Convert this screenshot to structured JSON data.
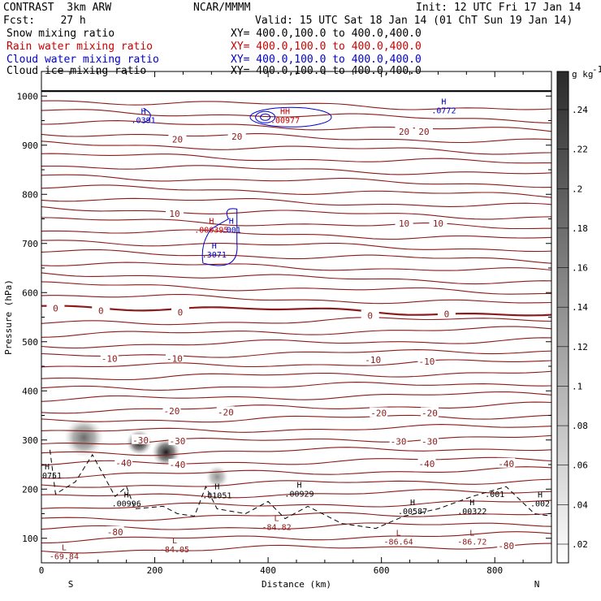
{
  "header": {
    "model": "CONTRAST  3km ARW",
    "org": "NCAR/MMMM",
    "init": "Init: 12 UTC Fri 17 Jan 14",
    "fcst": "Fcst:    27 h",
    "valid": "Valid: 15 UTC Sat 18 Jan 14 (01 ChT Sun 19 Jan 14)",
    "fields": [
      {
        "name": "Snow mixing ratio",
        "xy": "XY= 400.0,100.0 to 400.0,400.0",
        "color": "#000000"
      },
      {
        "name": "Rain water mixing ratio",
        "xy": "XY= 400.0,100.0 to 400.0,400.0",
        "color": "#cc0000"
      },
      {
        "name": "Cloud water mixing ratio",
        "xy": "XY= 400.0,100.0 to 400.0,400.0",
        "color": "#0000cc"
      },
      {
        "name": "Cloud ice mixing ratio",
        "xy": "XY= 400.0,100.0 to 400.0,400.0",
        "color": "#000000"
      }
    ]
  },
  "chart_data": {
    "type": "cross-section",
    "xlabel": "Distance (km)",
    "ylabel": "Pressure (hPa)",
    "xlim": [
      0,
      900
    ],
    "ylim": [
      1050,
      50
    ],
    "x_ticks": [
      0,
      200,
      400,
      600,
      800
    ],
    "y_ticks": [
      100,
      200,
      300,
      400,
      500,
      600,
      700,
      800,
      900,
      1000
    ],
    "end_labels": {
      "left": "S",
      "right": "N"
    },
    "colorbar": {
      "unit": "g kg",
      "unit_exp": "-1",
      "labels": [
        ".24",
        ".22",
        ".2",
        ".18",
        ".16",
        ".14",
        ".12",
        ".1",
        ".08",
        ".06",
        ".04",
        ".02"
      ]
    },
    "temperature_contours": [
      {
        "level": "-80",
        "labels": [
          {
            "x": 130,
            "p": 113
          },
          {
            "x": 820,
            "p": 85
          }
        ]
      },
      {
        "level": "-40",
        "labels": [
          {
            "x": 145,
            "p": 253
          },
          {
            "x": 240,
            "p": 250
          },
          {
            "x": 680,
            "p": 252
          },
          {
            "x": 820,
            "p": 252
          }
        ]
      },
      {
        "level": "-30",
        "labels": [
          {
            "x": 175,
            "p": 300
          },
          {
            "x": 240,
            "p": 298
          },
          {
            "x": 630,
            "p": 297
          },
          {
            "x": 685,
            "p": 297
          }
        ]
      },
      {
        "level": "-20",
        "labels": [
          {
            "x": 230,
            "p": 359
          },
          {
            "x": 325,
            "p": 357
          },
          {
            "x": 595,
            "p": 355
          },
          {
            "x": 685,
            "p": 355
          }
        ]
      },
      {
        "level": "-10",
        "labels": [
          {
            "x": 120,
            "p": 466
          },
          {
            "x": 235,
            "p": 466
          },
          {
            "x": 585,
            "p": 463
          },
          {
            "x": 680,
            "p": 460
          }
        ]
      },
      {
        "level": "0",
        "labels": [
          {
            "x": 25,
            "p": 568
          },
          {
            "x": 105,
            "p": 563
          },
          {
            "x": 245,
            "p": 560
          },
          {
            "x": 580,
            "p": 553
          },
          {
            "x": 715,
            "p": 557
          }
        ]
      },
      {
        "level": "10",
        "labels": [
          {
            "x": 235,
            "p": 761
          },
          {
            "x": 640,
            "p": 741
          },
          {
            "x": 700,
            "p": 741
          }
        ]
      },
      {
        "level": "20",
        "labels": [
          {
            "x": 240,
            "p": 912
          },
          {
            "x": 345,
            "p": 918
          },
          {
            "x": 640,
            "p": 928
          },
          {
            "x": 675,
            "p": 928
          }
        ]
      }
    ],
    "min_labels": [
      {
        "mark": "L",
        "value": "-69.84",
        "x": 40,
        "p": 76
      },
      {
        "mark": "L",
        "value": "-84.05",
        "x": 235,
        "p": 90
      },
      {
        "mark": "L",
        "value": "-84.82",
        "x": 415,
        "p": 135
      },
      {
        "mark": "L",
        "value": "-86.64",
        "x": 630,
        "p": 105
      },
      {
        "mark": "L",
        "value": "-86.72",
        "x": 760,
        "p": 105
      }
    ],
    "max_labels": [
      {
        "mark": "H",
        "value": ".00751",
        "x": 10,
        "p": 240,
        "color": "#000000"
      },
      {
        "mark": "H",
        "value": ".00996",
        "x": 150,
        "p": 183,
        "color": "#000000"
      },
      {
        "mark": "H",
        "value": ".01051",
        "x": 310,
        "p": 200,
        "color": "#000000"
      },
      {
        "mark": "H",
        "value": ".00929",
        "x": 455,
        "p": 203,
        "color": "#000000"
      },
      {
        "mark": "H",
        "value": ".00587",
        "x": 655,
        "p": 167,
        "color": "#000000"
      },
      {
        "mark": "H",
        "value": ".00322",
        "x": 760,
        "p": 167,
        "color": "#000000"
      },
      {
        "mark": "H",
        "value": ".002",
        "x": 880,
        "p": 183,
        "color": "#000000"
      },
      {
        "mark": "",
        "value": ".001",
        "x": 800,
        "p": 202,
        "color": "#000000"
      },
      {
        "mark": "H",
        "value": ".3071",
        "x": 305,
        "p": 690,
        "color": "#0000cc"
      },
      {
        "mark": "H",
        "value": ".000395",
        "x": 300,
        "p": 740,
        "color": "#cc0000"
      },
      {
        "mark": "H",
        "value": ".001",
        "x": 335,
        "p": 740,
        "color": "#0000cc"
      },
      {
        "mark": "H",
        "value": ".0391",
        "x": 180,
        "p": 963,
        "color": "#0000cc"
      },
      {
        "mark": "HH",
        "value": ".00977",
        "x": 430,
        "p": 963,
        "color": "#cc0000"
      },
      {
        "mark": "H",
        "value": ".0772",
        "x": 710,
        "p": 983,
        "color": "#0000cc"
      }
    ],
    "snow_regions": [
      {
        "x0": 40,
        "x1": 110,
        "p0": 230,
        "p1": 380,
        "max": 0.12
      },
      {
        "x0": 150,
        "x1": 195,
        "p0": 190,
        "p1": 400,
        "max": 0.24
      },
      {
        "x0": 195,
        "x1": 245,
        "p0": 190,
        "p1": 360,
        "max": 0.24
      },
      {
        "x0": 290,
        "x1": 330,
        "p0": 190,
        "p1": 260,
        "max": 0.08
      }
    ]
  }
}
